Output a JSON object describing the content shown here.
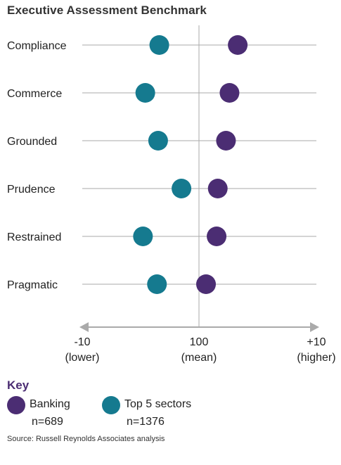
{
  "chart_data": {
    "type": "scatter",
    "title": "Executive Assessment Benchmark",
    "categories": [
      "Compliance",
      "Commerce",
      "Grounded",
      "Prudence",
      "Restrained",
      "Pragmatic"
    ],
    "series": [
      {
        "name": "Banking",
        "n_label": "n=689",
        "color": "#4b2d73",
        "values": [
          3.3,
          2.6,
          2.3,
          1.6,
          1.5,
          0.6
        ]
      },
      {
        "name": "Top 5 sectors",
        "n_label": "n=1376",
        "color": "#157a8f",
        "values": [
          -3.4,
          -4.6,
          -3.5,
          -1.5,
          -4.8,
          -3.6
        ]
      }
    ],
    "xlim": [
      -10,
      10
    ],
    "x_ticks": [
      {
        "value": -10,
        "label": "-10",
        "sublabel": "(lower)"
      },
      {
        "value": 0,
        "label": "100",
        "sublabel": "(mean)"
      },
      {
        "value": 10,
        "label": "+10",
        "sublabel": "(higher)"
      }
    ],
    "axis_color": "#aaaaaa",
    "grid": true
  },
  "key": {
    "title": "Key"
  },
  "source": "Source: Russell Reynolds Associates analysis"
}
